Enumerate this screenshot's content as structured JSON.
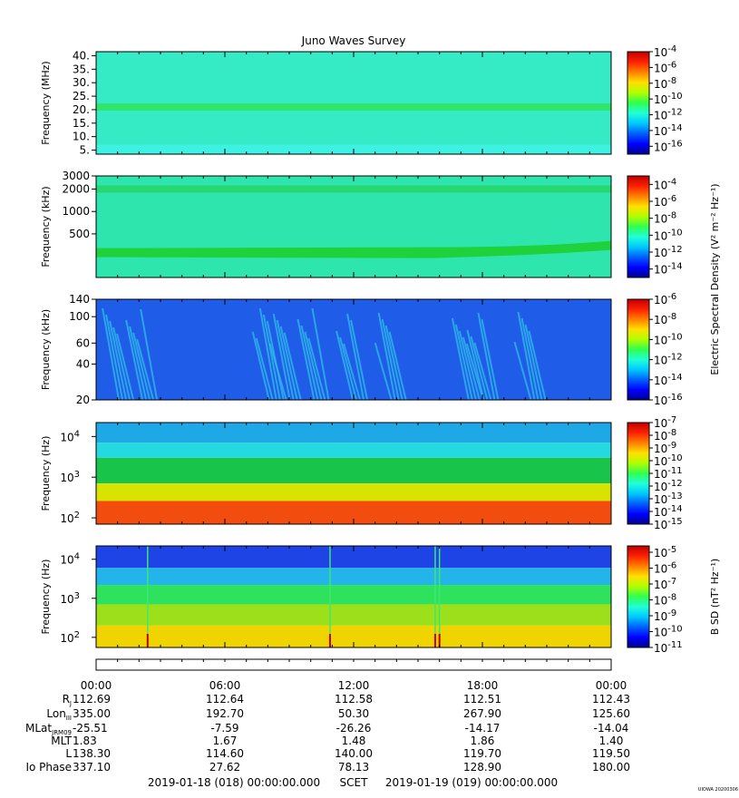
{
  "title": "Juno Waves Survey",
  "footer": {
    "start": "2019-01-18 (018) 00:00:00.000",
    "scet": "SCET",
    "end": "2019-01-19 (019) 00:00:00.000",
    "watermark": "UIOWA 20200306"
  },
  "chart_data": [
    {
      "type": "heatmap",
      "ylabel": "Frequency (MHz)",
      "yticks": [
        "40.",
        "35.",
        "30.",
        "25.",
        "20.",
        "15.",
        "10.",
        "5."
      ],
      "ylim": [
        3.5,
        41.5
      ],
      "yscale": "linear",
      "xlim": [
        "00:00",
        "00:00"
      ],
      "background": "#35ebc5",
      "features": [
        {
          "kind": "band",
          "frequency": 21,
          "color": "#2fe66a",
          "note": "steady emission line"
        },
        {
          "kind": "low-band",
          "frequency": 5,
          "color": "#3df2e2"
        }
      ],
      "colorbar": {
        "ticks": [
          "-4",
          "-6",
          "-8",
          "-10",
          "-12",
          "-14",
          "-16"
        ],
        "range": [
          -17,
          -4
        ],
        "label": ""
      }
    },
    {
      "type": "heatmap",
      "ylabel": "Frequency (kHz)",
      "yticks": [
        "3000",
        "2000",
        "1000",
        "500"
      ],
      "ylim": [
        130,
        3000
      ],
      "yscale": "log",
      "xlim": [
        "00:00",
        "00:00"
      ],
      "background": "#2ee6ad",
      "features": [
        {
          "kind": "band",
          "frequency": 2000,
          "color": "#25d873"
        },
        {
          "kind": "rising-band",
          "frequency_start": 280,
          "frequency_end": 350,
          "color": "#1fd13a"
        }
      ],
      "colorbar": {
        "ticks": [
          "-4",
          "-6",
          "-8",
          "-10",
          "-12",
          "-14"
        ],
        "range": [
          -15,
          -3
        ],
        "label": "Electric Spectral Density (V² m⁻² Hz⁻¹)"
      }
    },
    {
      "type": "heatmap",
      "ylabel": "Frequency (kHz)",
      "yticks": [
        "140",
        "100",
        "60",
        "40",
        "20"
      ],
      "ytick_values": [
        140,
        100,
        60,
        40,
        20
      ],
      "ylim": [
        20,
        140
      ],
      "yscale": "log",
      "xlim": [
        "00:00",
        "00:00"
      ],
      "background": "#1f5ce8",
      "features": [
        {
          "kind": "bursts",
          "color": "#2fbde8",
          "times_hours": [
            0.3,
            1.4,
            7.3,
            8.1,
            9.4,
            11.2,
            13.0,
            16.6,
            17.3,
            19.5
          ]
        }
      ],
      "colorbar": {
        "ticks": [
          "-6",
          "-8",
          "-10",
          "-12",
          "-14",
          "-16"
        ],
        "range": [
          -16,
          -6
        ],
        "label": ""
      }
    },
    {
      "type": "heatmap",
      "ylabel": "Frequency (Hz)",
      "yticks": [
        {
          "base": "10",
          "exp": "4"
        },
        {
          "base": "10",
          "exp": "3"
        },
        {
          "base": "10",
          "exp": "2"
        }
      ],
      "ylim": [
        70,
        22000
      ],
      "yscale": "log",
      "xlim": [
        "00:00",
        "00:00"
      ],
      "layers": [
        {
          "from_freq": 22000,
          "to_freq": 7000,
          "color": "#1ea8e6"
        },
        {
          "from_freq": 7000,
          "to_freq": 3000,
          "color": "#25d9e0"
        },
        {
          "from_freq": 3000,
          "to_freq": 700,
          "color": "#18c44a"
        },
        {
          "from_freq": 700,
          "to_freq": 260,
          "color": "#d8e400"
        },
        {
          "from_freq": 260,
          "to_freq": 70,
          "color": "#f34c0f"
        }
      ],
      "colorbar": {
        "ticks": [
          "-7",
          "-8",
          "-9",
          "-10",
          "-11",
          "-12",
          "-13",
          "-14",
          "-15"
        ],
        "range": [
          -15,
          -7
        ],
        "label": ""
      }
    },
    {
      "type": "heatmap",
      "ylabel": "Frequency (Hz)",
      "yticks": [
        {
          "base": "10",
          "exp": "4"
        },
        {
          "base": "10",
          "exp": "3"
        },
        {
          "base": "10",
          "exp": "2"
        }
      ],
      "ylim": [
        55,
        22000
      ],
      "yscale": "log",
      "xlim": [
        "00:00",
        "00:00"
      ],
      "layers": [
        {
          "from_freq": 22000,
          "to_freq": 6000,
          "color": "#1f44e6"
        },
        {
          "from_freq": 6000,
          "to_freq": 2200,
          "color": "#23b4ea"
        },
        {
          "from_freq": 2200,
          "to_freq": 700,
          "color": "#2fe25d"
        },
        {
          "from_freq": 700,
          "to_freq": 200,
          "color": "#9be01a"
        },
        {
          "from_freq": 200,
          "to_freq": 55,
          "color": "#f0d400"
        }
      ],
      "spikes_hours": [
        2.4,
        10.9,
        15.8,
        16.0
      ],
      "colorbar": {
        "ticks": [
          "-5",
          "-6",
          "-7",
          "-8",
          "-9",
          "-10",
          "-11"
        ],
        "range": [
          -11,
          -4.6
        ],
        "label": "B SD (nT² Hz⁻¹)"
      }
    }
  ],
  "ephemeris": {
    "times": [
      "00:00",
      "06:00",
      "12:00",
      "18:00",
      "00:00"
    ],
    "rows": [
      {
        "label": "RJ",
        "values": [
          "112.69",
          "112.64",
          "112.58",
          "112.51",
          "112.43"
        ]
      },
      {
        "label": "LonIII",
        "values": [
          "335.00",
          "192.70",
          "50.30",
          "267.90",
          "125.60"
        ]
      },
      {
        "label": "MLatJRM09",
        "values": [
          "-25.51",
          "-7.59",
          "-26.26",
          "-14.17",
          "-14.04"
        ]
      },
      {
        "label": "MLT",
        "values": [
          "1.83",
          "1.67",
          "1.48",
          "1.86",
          "1.40"
        ]
      },
      {
        "label": "L",
        "values": [
          "138.30",
          "114.60",
          "140.00",
          "119.70",
          "119.50"
        ]
      },
      {
        "label": "Io Phase",
        "values": [
          "337.10",
          "27.62",
          "78.13",
          "128.90",
          "180.00"
        ]
      }
    ]
  }
}
